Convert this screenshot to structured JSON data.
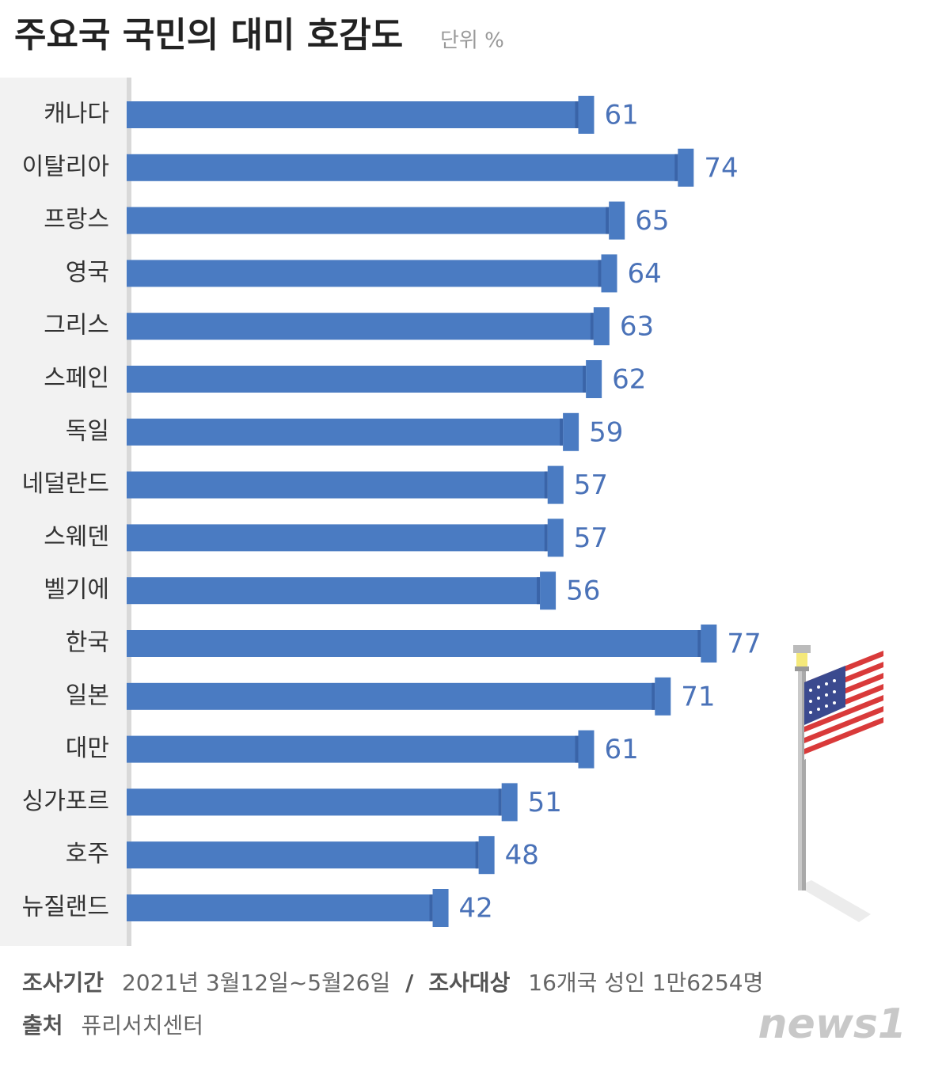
{
  "chart_data": {
    "type": "bar",
    "orientation": "horizontal",
    "title": "주요국 국민의 대미 호감도",
    "unit": "단위 %",
    "categories": [
      "캐나다",
      "이탈리아",
      "프랑스",
      "영국",
      "그리스",
      "스페인",
      "독일",
      "네덜란드",
      "스웨덴",
      "벨기에",
      "한국",
      "일본",
      "대만",
      "싱가포르",
      "호주",
      "뉴질랜드"
    ],
    "values": [
      61,
      74,
      65,
      64,
      63,
      62,
      59,
      57,
      57,
      56,
      77,
      71,
      61,
      51,
      48,
      42
    ],
    "color": "#4a7bc2",
    "label_color": "#4a72b8",
    "xlim": [
      0,
      100
    ],
    "footer": {
      "period_label": "조사기간",
      "period": "2021년 3월12일~5월26일",
      "separator": "/",
      "target_label": "조사대상",
      "target": "16개국 성인 1만6254명",
      "source_label": "출처",
      "source": "퓨리서치센터"
    },
    "logo": "news1"
  }
}
